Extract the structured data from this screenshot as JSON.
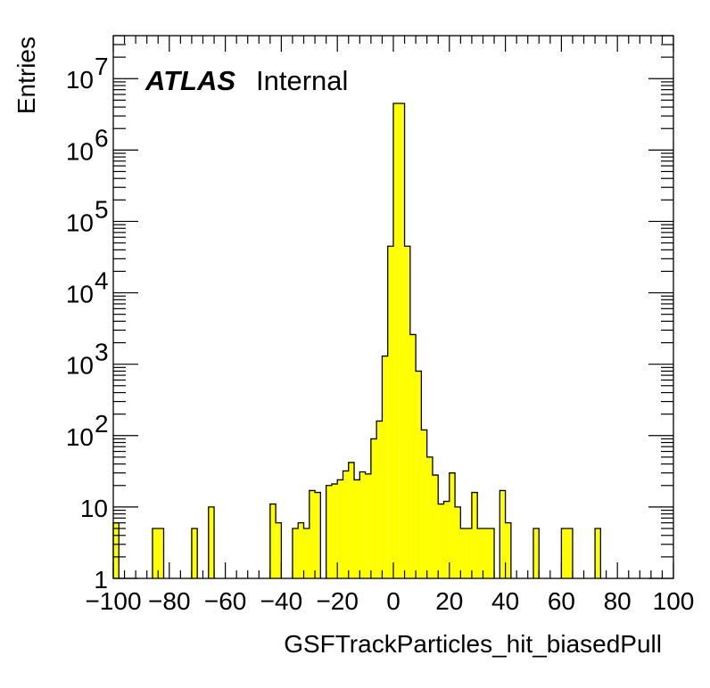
{
  "chart_data": {
    "type": "bar",
    "title": "",
    "xlabel": "GSFTrackParticles_hit_biasedPull",
    "ylabel": "Entries",
    "atlas_label": "ATLAS",
    "atlas_sublabel": "Internal",
    "xlim": [
      -100,
      100
    ],
    "ylim": [
      1,
      40000000
    ],
    "yscale": "log",
    "fill_color": "#ffff00",
    "edge_color": "#000000",
    "bin_width": 2,
    "x_ticks": [
      "−100",
      "−80",
      "−60",
      "−40",
      "−20",
      "0",
      "20",
      "40",
      "60",
      "80",
      "100"
    ],
    "y_ticks": [
      {
        "base": "1",
        "exp": ""
      },
      {
        "base": "10",
        "exp": ""
      },
      {
        "base": "10",
        "exp": "2"
      },
      {
        "base": "10",
        "exp": "3"
      },
      {
        "base": "10",
        "exp": "4"
      },
      {
        "base": "10",
        "exp": "5"
      },
      {
        "base": "10",
        "exp": "6"
      },
      {
        "base": "10",
        "exp": "7"
      }
    ],
    "bins": [
      [
        -100,
        6
      ],
      [
        -86,
        5
      ],
      [
        -84,
        5
      ],
      [
        -72,
        5
      ],
      [
        -66,
        10
      ],
      [
        -44,
        11
      ],
      [
        -42,
        6
      ],
      [
        -36,
        5
      ],
      [
        -34,
        6
      ],
      [
        -32,
        5
      ],
      [
        -30,
        17
      ],
      [
        -28,
        16
      ],
      [
        -24,
        20
      ],
      [
        -22,
        21
      ],
      [
        -20,
        24
      ],
      [
        -18,
        32
      ],
      [
        -16,
        42
      ],
      [
        -14,
        24
      ],
      [
        -12,
        31
      ],
      [
        -10,
        29
      ],
      [
        -8,
        90
      ],
      [
        -6,
        160
      ],
      [
        -4,
        1300
      ],
      [
        -2,
        45000
      ],
      [
        0,
        4500000
      ],
      [
        2,
        4500000
      ],
      [
        4,
        45000
      ],
      [
        6,
        2600
      ],
      [
        8,
        800
      ],
      [
        10,
        120
      ],
      [
        12,
        50
      ],
      [
        14,
        28
      ],
      [
        16,
        11
      ],
      [
        18,
        12
      ],
      [
        20,
        30
      ],
      [
        22,
        10
      ],
      [
        24,
        5
      ],
      [
        26,
        5
      ],
      [
        28,
        16
      ],
      [
        30,
        5
      ],
      [
        32,
        5
      ],
      [
        34,
        5
      ],
      [
        38,
        17
      ],
      [
        40,
        6
      ],
      [
        50,
        5
      ],
      [
        60,
        5
      ],
      [
        62,
        5
      ],
      [
        72,
        5
      ]
    ]
  }
}
